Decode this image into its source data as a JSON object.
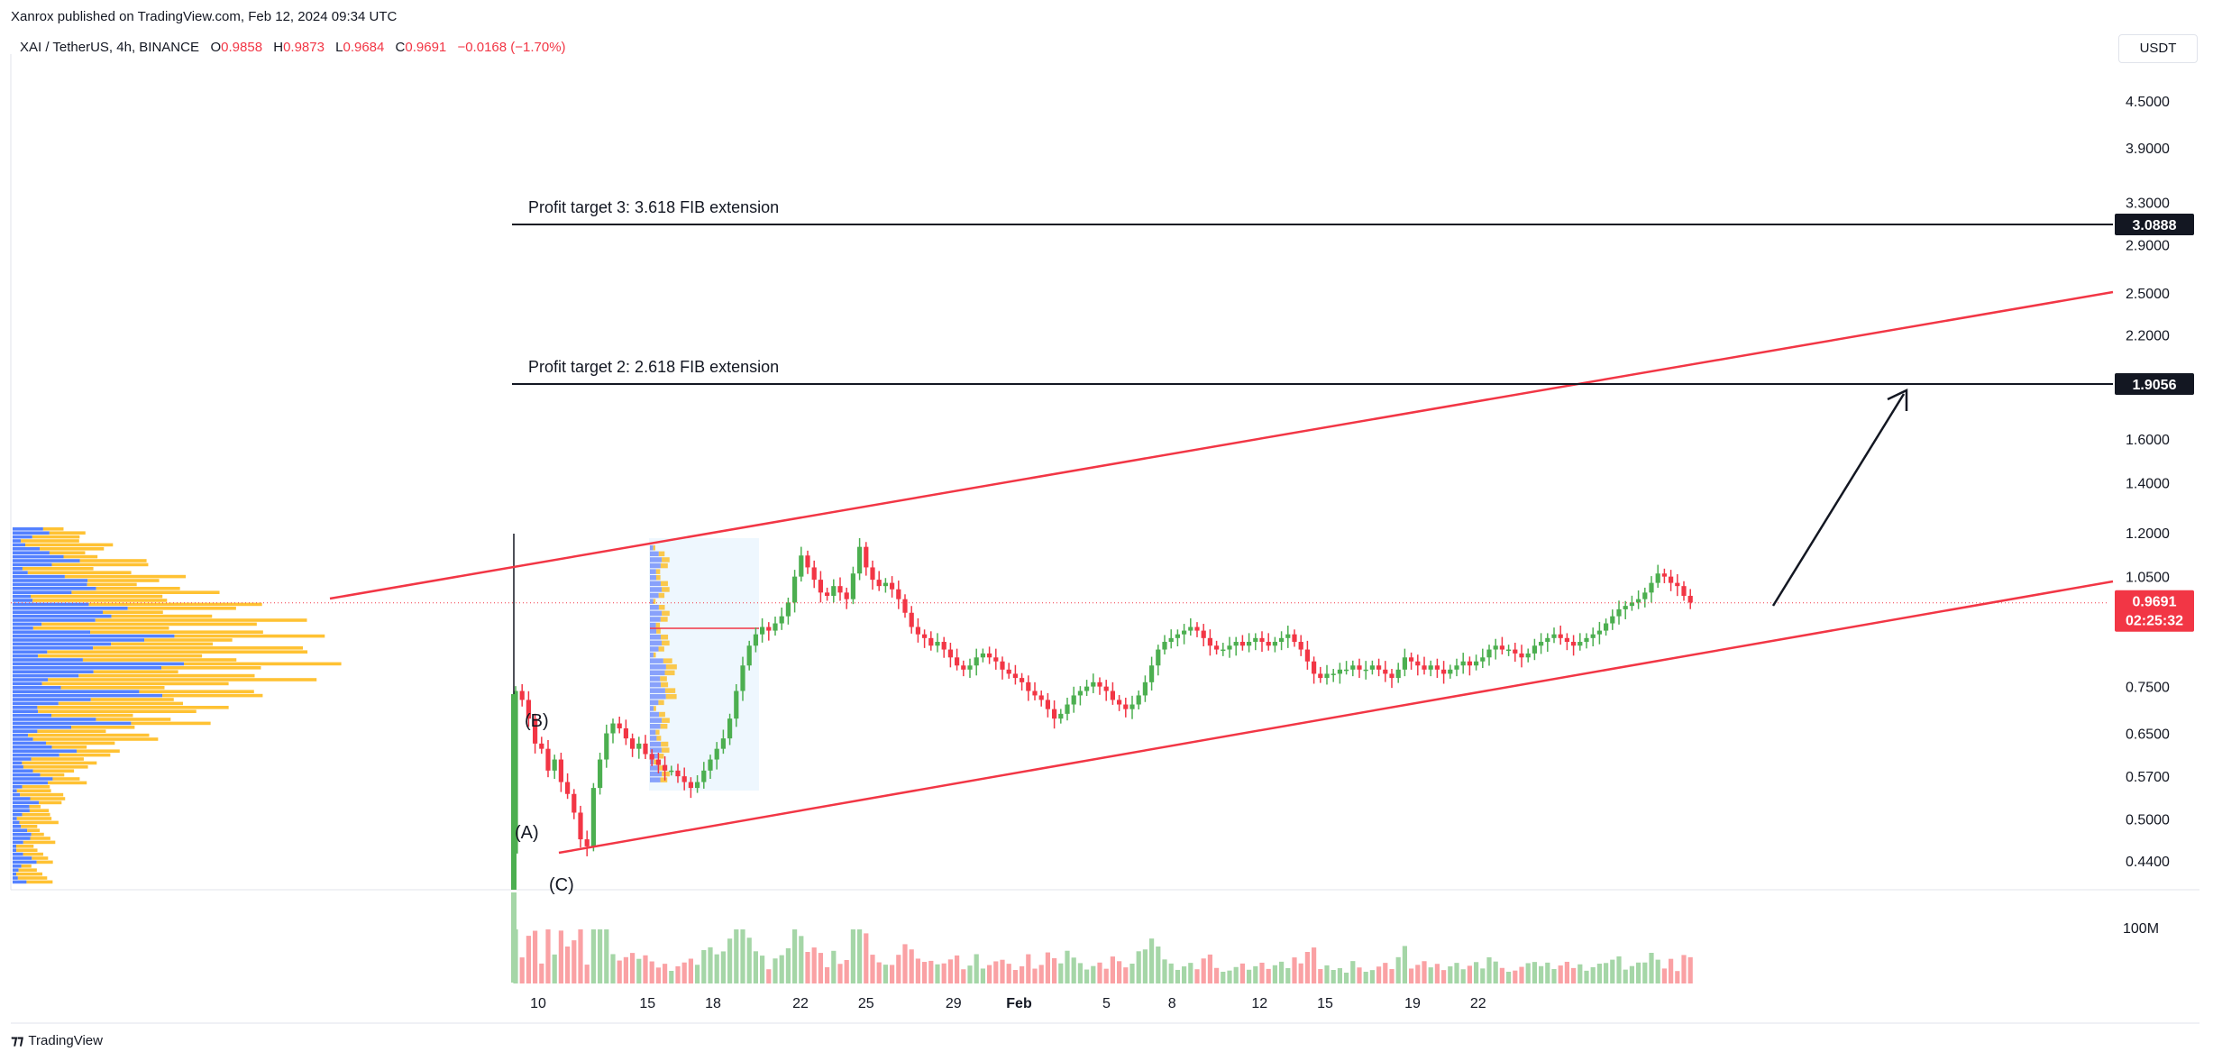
{
  "header": {
    "published": "Xanrox published on TradingView.com, Feb 12, 2024 09:34 UTC"
  },
  "legend": {
    "symbol": "XAI / TetherUS, 4h, BINANCE",
    "open_label": "O",
    "open": "0.9858",
    "high_label": "H",
    "high": "0.9873",
    "low_label": "L",
    "low": "0.9684",
    "close_label": "C",
    "close": "0.9691",
    "change": "−0.0168 (−1.70%)"
  },
  "currency": "USDT",
  "footer": {
    "brand": "TradingView"
  },
  "colors": {
    "up": "#26a69a",
    "up_candle": "#4caf50",
    "down": "#f23645",
    "channel": "#f23645",
    "level": "#131722",
    "vp_blue": "#2962ff",
    "vp_yellow": "#ffb300"
  },
  "chart_data": {
    "type": "candlestick",
    "scale": "log",
    "y_ticks": [
      "4.5000",
      "3.9000",
      "3.3000",
      "2.9000",
      "2.5000",
      "2.2000",
      "1.6000",
      "1.4000",
      "1.2000",
      "1.0500",
      "0.7500",
      "0.6500",
      "0.5700",
      "0.5000",
      "0.4400"
    ],
    "x_ticks": [
      "10",
      "15",
      "18",
      "22",
      "25",
      "29",
      "Feb",
      "5",
      "8",
      "12",
      "15",
      "19",
      "22"
    ],
    "volume_tick": "100M",
    "levels": [
      {
        "label": "Profit target 3: 3.618 FIB extension",
        "price": "3.0888"
      },
      {
        "label": "Profit target 2: 2.618 FIB extension",
        "price": "1.9056"
      }
    ],
    "last_price": {
      "value": "0.9691",
      "countdown": "02:25:32"
    },
    "channel_upper": {
      "from": [
        "Jan 4",
        0.97
      ],
      "to": [
        "Feb 22",
        2.52
      ]
    },
    "channel_lower": {
      "from": [
        "Jan 10",
        0.455
      ],
      "to": [
        "Feb 22",
        1.05
      ]
    },
    "wave_labels": [
      "(A)",
      "(B)",
      "(C)"
    ],
    "projection": {
      "from": [
        "Feb 12",
        0.975
      ],
      "to": [
        "Feb 16",
        1.87
      ]
    },
    "candles_close": [
      0.74,
      0.72,
      0.68,
      0.63,
      0.62,
      0.58,
      0.6,
      0.56,
      0.54,
      0.51,
      0.47,
      0.46,
      0.55,
      0.6,
      0.65,
      0.67,
      0.66,
      0.64,
      0.62,
      0.63,
      0.61,
      0.6,
      0.59,
      0.58,
      0.58,
      0.57,
      0.56,
      0.55,
      0.56,
      0.58,
      0.6,
      0.62,
      0.64,
      0.68,
      0.74,
      0.8,
      0.85,
      0.88,
      0.9,
      0.89,
      0.91,
      0.93,
      0.97,
      1.05,
      1.12,
      1.08,
      1.04,
      1.0,
      0.99,
      1.02,
      1.0,
      0.98,
      1.06,
      1.15,
      1.08,
      1.04,
      1.02,
      1.03,
      1.01,
      0.98,
      0.94,
      0.9,
      0.88,
      0.87,
      0.85,
      0.86,
      0.84,
      0.82,
      0.8,
      0.79,
      0.8,
      0.82,
      0.83,
      0.82,
      0.81,
      0.79,
      0.78,
      0.77,
      0.76,
      0.74,
      0.73,
      0.72,
      0.7,
      0.68,
      0.69,
      0.71,
      0.73,
      0.74,
      0.75,
      0.76,
      0.75,
      0.74,
      0.72,
      0.71,
      0.7,
      0.71,
      0.73,
      0.76,
      0.8,
      0.84,
      0.86,
      0.87,
      0.88,
      0.89,
      0.9,
      0.89,
      0.87,
      0.85,
      0.84,
      0.84,
      0.85,
      0.86,
      0.85,
      0.86,
      0.87,
      0.86,
      0.85,
      0.86,
      0.87,
      0.88,
      0.86,
      0.84,
      0.81,
      0.78,
      0.77,
      0.78,
      0.78,
      0.79,
      0.79,
      0.8,
      0.79,
      0.79,
      0.8,
      0.79,
      0.78,
      0.77,
      0.79,
      0.82,
      0.81,
      0.8,
      0.79,
      0.8,
      0.79,
      0.78,
      0.79,
      0.8,
      0.81,
      0.8,
      0.81,
      0.82,
      0.84,
      0.85,
      0.84,
      0.84,
      0.83,
      0.82,
      0.83,
      0.85,
      0.86,
      0.87,
      0.88,
      0.87,
      0.86,
      0.85,
      0.86,
      0.87,
      0.88,
      0.89,
      0.91,
      0.93,
      0.95,
      0.96,
      0.97,
      0.98,
      1.0,
      1.03,
      1.06,
      1.05,
      1.03,
      1.02,
      0.99,
      0.97
    ]
  }
}
